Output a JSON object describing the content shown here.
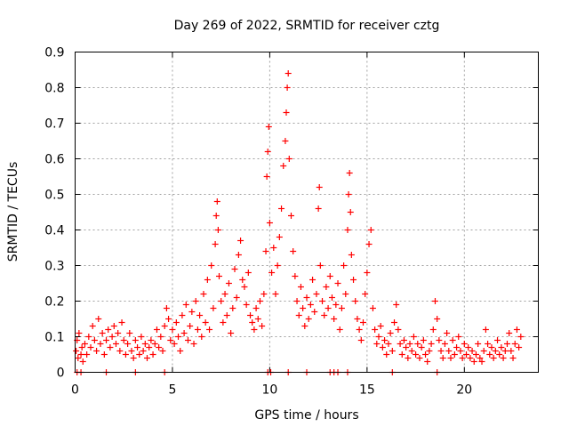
{
  "chart_data": {
    "type": "scatter",
    "title": "Day 269 of 2022, SRMTID for receiver cztg",
    "xlabel": "GPS time / hours",
    "ylabel": "SRMTID / TECUs",
    "xlim": [
      0,
      23.8
    ],
    "ylim": [
      0,
      0.9
    ],
    "xticks": [
      0,
      5,
      10,
      15,
      20
    ],
    "xtick_labels": [
      "0",
      "5",
      "10",
      "15",
      "20"
    ],
    "yticks": [
      0,
      0.1,
      0.2,
      0.3,
      0.4,
      0.5,
      0.6,
      0.7,
      0.8,
      0.9
    ],
    "ytick_labels": [
      "0",
      "0.1",
      "0.2",
      "0.3",
      "0.4",
      "0.5",
      "0.6",
      "0.7",
      "0.8",
      "0.9"
    ],
    "grid": true,
    "marker": "+",
    "color": "#ff0000",
    "series": [
      {
        "name": "SRMTID",
        "points": [
          [
            0.05,
            0.06
          ],
          [
            0.1,
            0.09
          ],
          [
            0.15,
            0.04
          ],
          [
            0.2,
            0.11
          ],
          [
            0.3,
            0.05
          ],
          [
            0.35,
            0.07
          ],
          [
            0.4,
            0.03
          ],
          [
            0.5,
            0.08
          ],
          [
            0.6,
            0.05
          ],
          [
            0.7,
            0.1
          ],
          [
            0.8,
            0.07
          ],
          [
            0.9,
            0.13
          ],
          [
            1.0,
            0.09
          ],
          [
            1.1,
            0.06
          ],
          [
            1.2,
            0.15
          ],
          [
            1.3,
            0.08
          ],
          [
            1.4,
            0.11
          ],
          [
            1.5,
            0.05
          ],
          [
            1.6,
            0.09
          ],
          [
            1.7,
            0.12
          ],
          [
            1.8,
            0.07
          ],
          [
            1.9,
            0.1
          ],
          [
            2.0,
            0.13
          ],
          [
            2.1,
            0.08
          ],
          [
            2.2,
            0.11
          ],
          [
            2.3,
            0.06
          ],
          [
            2.4,
            0.14
          ],
          [
            2.5,
            0.09
          ],
          [
            2.6,
            0.05
          ],
          [
            2.7,
            0.08
          ],
          [
            2.8,
            0.11
          ],
          [
            2.9,
            0.06
          ],
          [
            3.0,
            0.04
          ],
          [
            3.1,
            0.09
          ],
          [
            3.2,
            0.07
          ],
          [
            3.3,
            0.05
          ],
          [
            3.4,
            0.1
          ],
          [
            3.5,
            0.06
          ],
          [
            3.6,
            0.08
          ],
          [
            3.7,
            0.04
          ],
          [
            3.8,
            0.07
          ],
          [
            3.9,
            0.09
          ],
          [
            4.0,
            0.05
          ],
          [
            4.1,
            0.08
          ],
          [
            4.2,
            0.12
          ],
          [
            4.3,
            0.07
          ],
          [
            4.4,
            0.1
          ],
          [
            4.5,
            0.06
          ],
          [
            4.6,
            0.13
          ],
          [
            4.7,
            0.18
          ],
          [
            4.8,
            0.15
          ],
          [
            4.9,
            0.09
          ],
          [
            5.0,
            0.12
          ],
          [
            5.1,
            0.08
          ],
          [
            5.2,
            0.14
          ],
          [
            5.3,
            0.1
          ],
          [
            5.4,
            0.06
          ],
          [
            5.5,
            0.16
          ],
          [
            5.6,
            0.11
          ],
          [
            5.7,
            0.19
          ],
          [
            5.8,
            0.09
          ],
          [
            5.9,
            0.13
          ],
          [
            6.0,
            0.17
          ],
          [
            6.1,
            0.08
          ],
          [
            6.2,
            0.2
          ],
          [
            6.3,
            0.12
          ],
          [
            6.4,
            0.16
          ],
          [
            6.5,
            0.1
          ],
          [
            6.6,
            0.22
          ],
          [
            6.7,
            0.14
          ],
          [
            6.8,
            0.26
          ],
          [
            6.9,
            0.12
          ],
          [
            7.0,
            0.3
          ],
          [
            7.1,
            0.18
          ],
          [
            7.2,
            0.36
          ],
          [
            7.25,
            0.44
          ],
          [
            7.3,
            0.48
          ],
          [
            7.35,
            0.4
          ],
          [
            7.4,
            0.27
          ],
          [
            7.5,
            0.2
          ],
          [
            7.6,
            0.14
          ],
          [
            7.7,
            0.22
          ],
          [
            7.8,
            0.16
          ],
          [
            7.9,
            0.25
          ],
          [
            8.0,
            0.11
          ],
          [
            8.1,
            0.18
          ],
          [
            8.2,
            0.29
          ],
          [
            8.3,
            0.21
          ],
          [
            8.4,
            0.33
          ],
          [
            8.5,
            0.37
          ],
          [
            8.6,
            0.26
          ],
          [
            8.7,
            0.24
          ],
          [
            8.8,
            0.19
          ],
          [
            8.9,
            0.28
          ],
          [
            9.0,
            0.16
          ],
          [
            9.1,
            0.14
          ],
          [
            9.2,
            0.12
          ],
          [
            9.3,
            0.18
          ],
          [
            9.4,
            0.15
          ],
          [
            9.5,
            0.2
          ],
          [
            9.6,
            0.13
          ],
          [
            9.7,
            0.22
          ],
          [
            9.8,
            0.34
          ],
          [
            9.85,
            0.55
          ],
          [
            9.9,
            0.62
          ],
          [
            9.95,
            0.69
          ],
          [
            10.0,
            0.42
          ],
          [
            10.1,
            0.28
          ],
          [
            10.2,
            0.35
          ],
          [
            10.3,
            0.22
          ],
          [
            10.4,
            0.3
          ],
          [
            10.5,
            0.38
          ],
          [
            10.6,
            0.46
          ],
          [
            10.7,
            0.58
          ],
          [
            10.8,
            0.65
          ],
          [
            10.85,
            0.73
          ],
          [
            10.9,
            0.8
          ],
          [
            10.95,
            0.84
          ],
          [
            11.0,
            0.6
          ],
          [
            11.1,
            0.44
          ],
          [
            11.2,
            0.34
          ],
          [
            11.3,
            0.27
          ],
          [
            11.4,
            0.2
          ],
          [
            11.5,
            0.16
          ],
          [
            11.6,
            0.24
          ],
          [
            11.7,
            0.18
          ],
          [
            11.8,
            0.13
          ],
          [
            11.9,
            0.21
          ],
          [
            12.0,
            0.15
          ],
          [
            12.1,
            0.19
          ],
          [
            12.2,
            0.26
          ],
          [
            12.3,
            0.17
          ],
          [
            12.4,
            0.22
          ],
          [
            12.5,
            0.46
          ],
          [
            12.55,
            0.52
          ],
          [
            12.6,
            0.3
          ],
          [
            12.7,
            0.2
          ],
          [
            12.8,
            0.16
          ],
          [
            12.9,
            0.24
          ],
          [
            13.0,
            0.18
          ],
          [
            13.1,
            0.27
          ],
          [
            13.2,
            0.21
          ],
          [
            13.3,
            0.15
          ],
          [
            13.4,
            0.19
          ],
          [
            13.5,
            0.25
          ],
          [
            13.6,
            0.12
          ],
          [
            13.7,
            0.18
          ],
          [
            13.8,
            0.3
          ],
          [
            13.9,
            0.22
          ],
          [
            14.0,
            0.4
          ],
          [
            14.05,
            0.5
          ],
          [
            14.1,
            0.56
          ],
          [
            14.15,
            0.45
          ],
          [
            14.2,
            0.33
          ],
          [
            14.3,
            0.26
          ],
          [
            14.4,
            0.2
          ],
          [
            14.5,
            0.15
          ],
          [
            14.6,
            0.12
          ],
          [
            14.7,
            0.09
          ],
          [
            14.8,
            0.14
          ],
          [
            14.9,
            0.22
          ],
          [
            15.0,
            0.28
          ],
          [
            15.1,
            0.36
          ],
          [
            15.2,
            0.4
          ],
          [
            15.3,
            0.18
          ],
          [
            15.4,
            0.12
          ],
          [
            15.5,
            0.08
          ],
          [
            15.6,
            0.1
          ],
          [
            15.7,
            0.13
          ],
          [
            15.8,
            0.07
          ],
          [
            15.9,
            0.09
          ],
          [
            16.0,
            0.05
          ],
          [
            16.1,
            0.08
          ],
          [
            16.2,
            0.11
          ],
          [
            16.3,
            0.06
          ],
          [
            16.4,
            0.14
          ],
          [
            16.5,
            0.19
          ],
          [
            16.6,
            0.12
          ],
          [
            16.7,
            0.08
          ],
          [
            16.8,
            0.05
          ],
          [
            16.9,
            0.09
          ],
          [
            17.0,
            0.07
          ],
          [
            17.1,
            0.04
          ],
          [
            17.2,
            0.08
          ],
          [
            17.3,
            0.06
          ],
          [
            17.4,
            0.1
          ],
          [
            17.5,
            0.05
          ],
          [
            17.6,
            0.08
          ],
          [
            17.7,
            0.04
          ],
          [
            17.8,
            0.07
          ],
          [
            17.9,
            0.09
          ],
          [
            18.0,
            0.05
          ],
          [
            18.1,
            0.03
          ],
          [
            18.2,
            0.06
          ],
          [
            18.3,
            0.08
          ],
          [
            18.4,
            0.12
          ],
          [
            18.5,
            0.2
          ],
          [
            18.6,
            0.15
          ],
          [
            18.7,
            0.09
          ],
          [
            18.8,
            0.06
          ],
          [
            18.9,
            0.04
          ],
          [
            19.0,
            0.08
          ],
          [
            19.1,
            0.11
          ],
          [
            19.2,
            0.06
          ],
          [
            19.3,
            0.04
          ],
          [
            19.4,
            0.09
          ],
          [
            19.5,
            0.05
          ],
          [
            19.6,
            0.07
          ],
          [
            19.7,
            0.1
          ],
          [
            19.8,
            0.06
          ],
          [
            19.9,
            0.04
          ],
          [
            20.0,
            0.08
          ],
          [
            20.1,
            0.05
          ],
          [
            20.2,
            0.07
          ],
          [
            20.3,
            0.04
          ],
          [
            20.4,
            0.06
          ],
          [
            20.5,
            0.03
          ],
          [
            20.6,
            0.05
          ],
          [
            20.7,
            0.08
          ],
          [
            20.8,
            0.04
          ],
          [
            20.9,
            0.03
          ],
          [
            21.0,
            0.06
          ],
          [
            21.1,
            0.12
          ],
          [
            21.2,
            0.08
          ],
          [
            21.3,
            0.05
          ],
          [
            21.4,
            0.07
          ],
          [
            21.5,
            0.04
          ],
          [
            21.6,
            0.06
          ],
          [
            21.7,
            0.09
          ],
          [
            21.8,
            0.05
          ],
          [
            21.9,
            0.07
          ],
          [
            22.0,
            0.04
          ],
          [
            22.1,
            0.06
          ],
          [
            22.2,
            0.08
          ],
          [
            22.3,
            0.11
          ],
          [
            22.4,
            0.06
          ],
          [
            22.5,
            0.04
          ],
          [
            22.6,
            0.08
          ],
          [
            22.7,
            0.12
          ],
          [
            22.8,
            0.07
          ],
          [
            22.9,
            0.1
          ],
          [
            0.1,
            0.0
          ],
          [
            0.3,
            0.0
          ],
          [
            1.6,
            0.0
          ],
          [
            3.1,
            0.0
          ],
          [
            4.6,
            0.0
          ],
          [
            9.9,
            0.0
          ],
          [
            10.05,
            0.0
          ],
          [
            10.95,
            0.0
          ],
          [
            11.9,
            0.0
          ],
          [
            13.1,
            0.0
          ],
          [
            13.3,
            0.0
          ],
          [
            13.5,
            0.0
          ],
          [
            14.0,
            0.0
          ],
          [
            16.3,
            0.0
          ],
          [
            18.6,
            0.0
          ]
        ]
      }
    ]
  }
}
